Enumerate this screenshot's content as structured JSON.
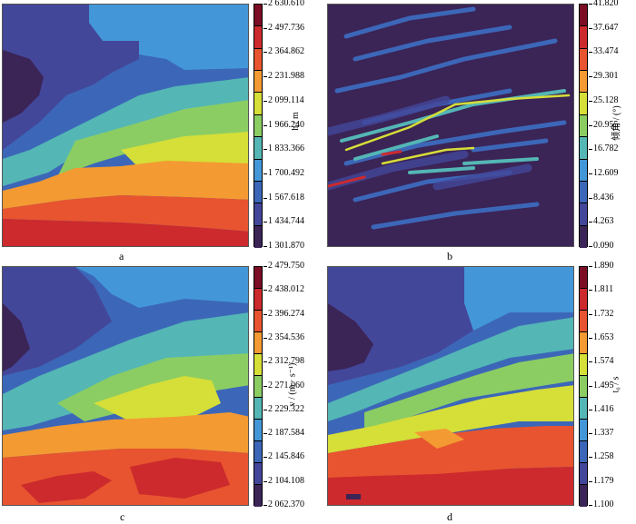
{
  "chart_data": [
    {
      "type": "heatmap",
      "panel_label": "a",
      "colorbar_label": "h / m",
      "colorbar_ticks": [
        "2 630.610",
        "2 497.736",
        "2 364.862",
        "2 231.988",
        "2 099.114",
        "1 966.240",
        "1 833.366",
        "1 700.492",
        "1 567.618",
        "1 434.744",
        "1 301.870"
      ],
      "colorbar_colors": [
        "#7b0d24",
        "#cc2a2d",
        "#e8542f",
        "#f39a32",
        "#d6de38",
        "#8bcd63",
        "#54b6b5",
        "#4397d8",
        "#3c67b8",
        "#43479a",
        "#3b2456"
      ],
      "value_range": [
        1301.87,
        2630.61
      ]
    },
    {
      "type": "heatmap",
      "panel_label": "b",
      "colorbar_label": "倾角 / (°)",
      "colorbar_ticks": [
        "41.820",
        "37.647",
        "33.474",
        "29.301",
        "25.128",
        "20.955",
        "16.782",
        "12.609",
        "8.436",
        "4.263",
        "0.090"
      ],
      "colorbar_colors": [
        "#7b0d24",
        "#cc2a2d",
        "#e8542f",
        "#f39a32",
        "#d6de38",
        "#8bcd63",
        "#54b6b5",
        "#4397d8",
        "#3c67b8",
        "#43479a",
        "#3b2456"
      ],
      "value_range": [
        0.09,
        41.82
      ]
    },
    {
      "type": "heatmap",
      "panel_label": "c",
      "colorbar_label": "v / (m · s⁻¹)",
      "colorbar_ticks": [
        "2 479.750",
        "2 438.012",
        "2 396.274",
        "2 354.536",
        "2 312.798",
        "2 271.060",
        "2 229.322",
        "2 187.584",
        "2 145.846",
        "2 104.108",
        "2 062.370"
      ],
      "colorbar_colors": [
        "#7b0d24",
        "#cc2a2d",
        "#e8542f",
        "#f39a32",
        "#d6de38",
        "#8bcd63",
        "#54b6b5",
        "#4397d8",
        "#3c67b8",
        "#43479a",
        "#3b2456"
      ],
      "value_range": [
        2062.37,
        2479.75
      ]
    },
    {
      "type": "heatmap",
      "panel_label": "d",
      "colorbar_label": "t₀ / s",
      "colorbar_ticks": [
        "1.890",
        "1.811",
        "1.732",
        "1.653",
        "1.574",
        "1.495",
        "1.416",
        "1.337",
        "1.258",
        "1.179",
        "1.100"
      ],
      "colorbar_colors": [
        "#7b0d24",
        "#cc2a2d",
        "#e8542f",
        "#f39a32",
        "#d6de38",
        "#8bcd63",
        "#54b6b5",
        "#4397d8",
        "#3c67b8",
        "#43479a",
        "#3b2456"
      ],
      "value_range": [
        1.1,
        1.89
      ]
    }
  ]
}
